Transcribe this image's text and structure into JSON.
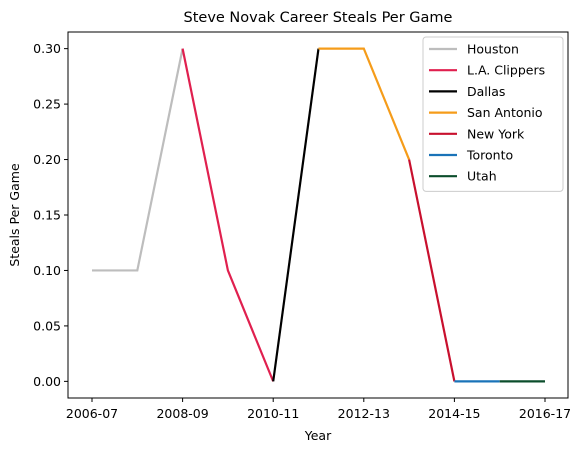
{
  "chart_data": {
    "type": "line",
    "title": "Steve Novak Career Steals Per Game",
    "xlabel": "Year",
    "ylabel": "Steals Per Game",
    "x_tick_labels": [
      "2006-07",
      "2008-09",
      "2010-11",
      "2012-13",
      "2014-15",
      "2016-17"
    ],
    "y_tick_labels": [
      "0.00",
      "0.05",
      "0.10",
      "0.15",
      "0.20",
      "0.25",
      "0.30"
    ],
    "ylim": [
      -0.015,
      0.315
    ],
    "grid": false,
    "legend_position": "top-right",
    "series": [
      {
        "name": "Houston",
        "color": "#bdbdbd",
        "x": [
          "2006-07",
          "2007-08",
          "2008-09"
        ],
        "values": [
          0.1,
          0.1,
          0.3
        ]
      },
      {
        "name": "L.A. Clippers",
        "color": "#e0204f",
        "x": [
          "2008-09",
          "2009-10",
          "2010-11"
        ],
        "values": [
          0.3,
          0.1,
          0.0
        ]
      },
      {
        "name": "Dallas",
        "color": "#000000",
        "x": [
          "2010-11",
          "2011-12"
        ],
        "values": [
          0.0,
          0.3
        ]
      },
      {
        "name": "San Antonio",
        "color": "#f59c1a",
        "x": [
          "2011-12",
          "2012-13",
          "2013-14"
        ],
        "values": [
          0.3,
          0.3,
          0.2
        ]
      },
      {
        "name": "New York",
        "color": "#c8102e",
        "x": [
          "2013-14",
          "2014-15"
        ],
        "values": [
          0.2,
          0.0
        ]
      },
      {
        "name": "Toronto",
        "color": "#1a73b8",
        "x": [
          "2014-15",
          "2015-16"
        ],
        "values": [
          0.0,
          0.0
        ]
      },
      {
        "name": "Utah",
        "color": "#0b4d2b",
        "x": [
          "2015-16",
          "2016-17"
        ],
        "values": [
          0.0,
          0.0
        ]
      }
    ],
    "x_categories": [
      "2006-07",
      "2007-08",
      "2008-09",
      "2009-10",
      "2010-11",
      "2011-12",
      "2012-13",
      "2013-14",
      "2014-15",
      "2015-16",
      "2016-17"
    ]
  }
}
